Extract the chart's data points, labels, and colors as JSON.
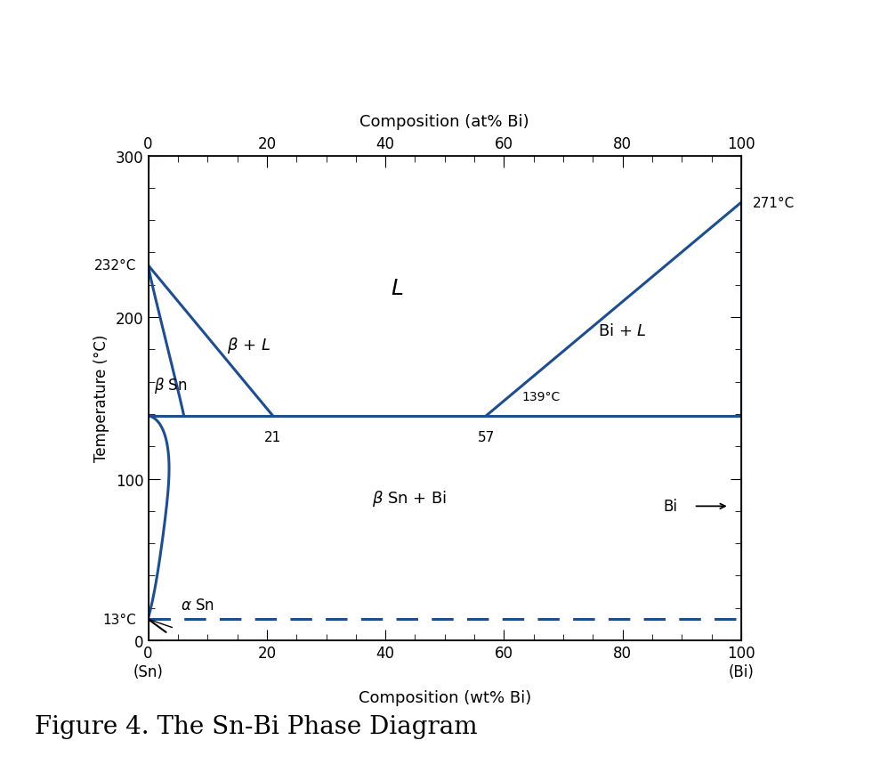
{
  "title_bottom": "Figure 4. The Sn-Bi Phase Diagram",
  "xlabel_bottom": "Composition (wt% Bi)",
  "xlabel_top": "Composition (at% Bi)",
  "ylabel": "Temperature (°C)",
  "xlim": [
    0,
    100
  ],
  "ylim": [
    0,
    300
  ],
  "xticks_bottom": [
    0,
    20,
    40,
    60,
    80,
    100
  ],
  "xticks_top": [
    0,
    20,
    40,
    60,
    80,
    100
  ],
  "yticks": [
    0,
    100,
    200,
    300
  ],
  "line_color": "#1f4e8c",
  "dashed_color": "#1f4e8c",
  "bg_color": "#ffffff",
  "figsize": [
    9.8,
    8.78
  ],
  "dpi": 100
}
